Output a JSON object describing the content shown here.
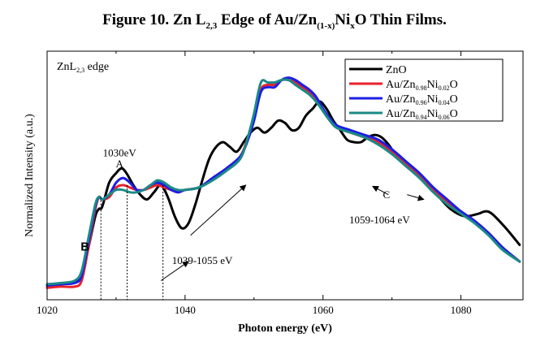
{
  "figure_title": {
    "prefix": "Figure 10. Zn L",
    "sub1": "2,3",
    "mid1": " Edge of Au/Zn",
    "sub2": "(1-x)",
    "mid2": "Ni",
    "sub3": "x",
    "suffix": "O Thin Films."
  },
  "chart_data": {
    "type": "line",
    "title": "Figure 10. Zn L2,3 Edge of Au/Zn(1-x)NixO Thin Films.",
    "xlabel": "Photon energy (eV)",
    "ylabel": "Normalized Intensity (a.u.)",
    "xlim": [
      1020,
      1089
    ],
    "ylim": [
      0,
      1
    ],
    "x_ticks": [
      1020,
      1040,
      1060,
      1080
    ],
    "grid": false,
    "legend_position": "top-right",
    "inset_label": {
      "main": "ZnL",
      "sub": "2,3",
      "tail": " edge"
    },
    "series": [
      {
        "name": "ZnO",
        "legend": {
          "base": "ZnO",
          "parts": []
        },
        "color": "#000000",
        "points": [
          [
            1020,
            0.06
          ],
          [
            1022,
            0.065
          ],
          [
            1024,
            0.075
          ],
          [
            1025,
            0.1
          ],
          [
            1026,
            0.22
          ],
          [
            1027,
            0.35
          ],
          [
            1027.5,
            0.38
          ],
          [
            1028,
            0.39
          ],
          [
            1029,
            0.49
          ],
          [
            1030,
            0.53
          ],
          [
            1030.8,
            0.55
          ],
          [
            1031.5,
            0.53
          ],
          [
            1032.5,
            0.48
          ],
          [
            1033.5,
            0.44
          ],
          [
            1034.5,
            0.42
          ],
          [
            1035.5,
            0.45
          ],
          [
            1036.5,
            0.48
          ],
          [
            1037.5,
            0.43
          ],
          [
            1038.5,
            0.35
          ],
          [
            1039.5,
            0.3
          ],
          [
            1040.5,
            0.32
          ],
          [
            1041.5,
            0.4
          ],
          [
            1042.5,
            0.5
          ],
          [
            1043.5,
            0.59
          ],
          [
            1044.5,
            0.64
          ],
          [
            1045.5,
            0.66
          ],
          [
            1046.5,
            0.64
          ],
          [
            1047.5,
            0.62
          ],
          [
            1048.5,
            0.66
          ],
          [
            1049.5,
            0.7
          ],
          [
            1050.5,
            0.72
          ],
          [
            1051.5,
            0.7
          ],
          [
            1052.5,
            0.72
          ],
          [
            1053.5,
            0.75
          ],
          [
            1054.5,
            0.74
          ],
          [
            1055.5,
            0.71
          ],
          [
            1056.5,
            0.72
          ],
          [
            1057.5,
            0.77
          ],
          [
            1058.5,
            0.8
          ],
          [
            1059.5,
            0.83
          ],
          [
            1060.5,
            0.8
          ],
          [
            1061.5,
            0.75
          ],
          [
            1062.5,
            0.71
          ],
          [
            1063.5,
            0.67
          ],
          [
            1064.5,
            0.66
          ],
          [
            1065.5,
            0.66
          ],
          [
            1066.5,
            0.68
          ],
          [
            1067.5,
            0.69
          ],
          [
            1068.5,
            0.68
          ],
          [
            1069.5,
            0.65
          ],
          [
            1070.5,
            0.61
          ],
          [
            1072.5,
            0.55
          ],
          [
            1074.5,
            0.5
          ],
          [
            1076.5,
            0.44
          ],
          [
            1078.5,
            0.38
          ],
          [
            1080.5,
            0.35
          ],
          [
            1082.5,
            0.36
          ],
          [
            1083.5,
            0.37
          ],
          [
            1084.5,
            0.36
          ],
          [
            1086.5,
            0.3
          ],
          [
            1088.5,
            0.23
          ]
        ]
      },
      {
        "name": "Au/Zn0.98Ni0.02O",
        "legend": {
          "base": "Au/Zn",
          "parts": [
            [
              "0.98",
              "sub"
            ],
            [
              "Ni",
              ""
            ],
            [
              "0.02",
              "sub"
            ],
            [
              "O",
              ""
            ]
          ]
        },
        "color": "#e8222b",
        "points": [
          [
            1020,
            0.05
          ],
          [
            1022,
            0.055
          ],
          [
            1024,
            0.055
          ],
          [
            1025,
            0.08
          ],
          [
            1026,
            0.22
          ],
          [
            1027,
            0.38
          ],
          [
            1027.5,
            0.43
          ],
          [
            1028,
            0.42
          ],
          [
            1029,
            0.43
          ],
          [
            1030,
            0.47
          ],
          [
            1031,
            0.48
          ],
          [
            1032,
            0.47
          ],
          [
            1033,
            0.46
          ],
          [
            1034,
            0.46
          ],
          [
            1035,
            0.47
          ],
          [
            1036,
            0.48
          ],
          [
            1037,
            0.47
          ],
          [
            1038,
            0.46
          ],
          [
            1039,
            0.45
          ],
          [
            1040,
            0.46
          ],
          [
            1042,
            0.47
          ],
          [
            1044,
            0.51
          ],
          [
            1046,
            0.55
          ],
          [
            1048,
            0.6
          ],
          [
            1049,
            0.67
          ],
          [
            1050,
            0.76
          ],
          [
            1051,
            0.88
          ],
          [
            1052,
            0.9
          ],
          [
            1053,
            0.9
          ],
          [
            1054,
            0.92
          ],
          [
            1055,
            0.92
          ],
          [
            1056,
            0.91
          ],
          [
            1057,
            0.89
          ],
          [
            1058,
            0.87
          ],
          [
            1059,
            0.84
          ],
          [
            1060,
            0.79
          ],
          [
            1061,
            0.75
          ],
          [
            1062,
            0.72
          ],
          [
            1064,
            0.7
          ],
          [
            1066,
            0.68
          ],
          [
            1068,
            0.66
          ],
          [
            1070,
            0.62
          ],
          [
            1072,
            0.57
          ],
          [
            1074,
            0.52
          ],
          [
            1076,
            0.46
          ],
          [
            1078,
            0.41
          ],
          [
            1080,
            0.37
          ],
          [
            1082,
            0.33
          ],
          [
            1084,
            0.28
          ],
          [
            1086,
            0.22
          ],
          [
            1088.5,
            0.16
          ]
        ]
      },
      {
        "name": "Au/Zn0.96Ni0.04O",
        "legend": {
          "base": "Au/Zn",
          "parts": [
            [
              "0.96",
              "sub"
            ],
            [
              "Ni",
              ""
            ],
            [
              "0.04",
              "sub"
            ],
            [
              "O",
              ""
            ]
          ]
        },
        "color": "#1d1de6",
        "points": [
          [
            1020,
            0.06
          ],
          [
            1022,
            0.065
          ],
          [
            1024,
            0.07
          ],
          [
            1025,
            0.1
          ],
          [
            1026,
            0.24
          ],
          [
            1027,
            0.39
          ],
          [
            1027.5,
            0.43
          ],
          [
            1028,
            0.42
          ],
          [
            1029,
            0.44
          ],
          [
            1030,
            0.49
          ],
          [
            1031,
            0.51
          ],
          [
            1032,
            0.49
          ],
          [
            1033,
            0.46
          ],
          [
            1034,
            0.46
          ],
          [
            1035,
            0.48
          ],
          [
            1036,
            0.49
          ],
          [
            1037,
            0.48
          ],
          [
            1038,
            0.46
          ],
          [
            1039,
            0.45
          ],
          [
            1040,
            0.46
          ],
          [
            1042,
            0.47
          ],
          [
            1044,
            0.51
          ],
          [
            1046,
            0.55
          ],
          [
            1048,
            0.6
          ],
          [
            1049,
            0.66
          ],
          [
            1050,
            0.75
          ],
          [
            1051,
            0.87
          ],
          [
            1052,
            0.89
          ],
          [
            1053,
            0.89
          ],
          [
            1054,
            0.92
          ],
          [
            1055,
            0.93
          ],
          [
            1056,
            0.92
          ],
          [
            1057,
            0.9
          ],
          [
            1058,
            0.88
          ],
          [
            1059,
            0.85
          ],
          [
            1060,
            0.8
          ],
          [
            1061,
            0.76
          ],
          [
            1062,
            0.73
          ],
          [
            1064,
            0.71
          ],
          [
            1066,
            0.69
          ],
          [
            1068,
            0.67
          ],
          [
            1070,
            0.63
          ],
          [
            1072,
            0.58
          ],
          [
            1074,
            0.53
          ],
          [
            1076,
            0.47
          ],
          [
            1078,
            0.42
          ],
          [
            1080,
            0.37
          ],
          [
            1082,
            0.33
          ],
          [
            1084,
            0.28
          ],
          [
            1086,
            0.22
          ],
          [
            1088.5,
            0.16
          ]
        ]
      },
      {
        "name": "Au/Zn0.94Ni0.06O",
        "legend": {
          "base": "Au/Zn",
          "parts": [
            [
              "0.94",
              "sub"
            ],
            [
              "Ni",
              ""
            ],
            [
              "0.06",
              "sub"
            ],
            [
              "O",
              ""
            ]
          ]
        },
        "color": "#1b8a86",
        "points": [
          [
            1020,
            0.065
          ],
          [
            1022,
            0.07
          ],
          [
            1024,
            0.08
          ],
          [
            1025,
            0.12
          ],
          [
            1026,
            0.26
          ],
          [
            1027,
            0.4
          ],
          [
            1027.5,
            0.43
          ],
          [
            1028,
            0.42
          ],
          [
            1029,
            0.44
          ],
          [
            1030,
            0.46
          ],
          [
            1031,
            0.46
          ],
          [
            1032,
            0.45
          ],
          [
            1033,
            0.45
          ],
          [
            1034,
            0.46
          ],
          [
            1035,
            0.48
          ],
          [
            1036,
            0.5
          ],
          [
            1037,
            0.49
          ],
          [
            1038,
            0.47
          ],
          [
            1039,
            0.46
          ],
          [
            1040,
            0.46
          ],
          [
            1042,
            0.47
          ],
          [
            1044,
            0.5
          ],
          [
            1046,
            0.54
          ],
          [
            1048,
            0.59
          ],
          [
            1049,
            0.67
          ],
          [
            1050,
            0.78
          ],
          [
            1051,
            0.91
          ],
          [
            1052,
            0.91
          ],
          [
            1053,
            0.91
          ],
          [
            1054,
            0.92
          ],
          [
            1055,
            0.92
          ],
          [
            1056,
            0.9
          ],
          [
            1057,
            0.88
          ],
          [
            1058,
            0.86
          ],
          [
            1059,
            0.83
          ],
          [
            1060,
            0.79
          ],
          [
            1061,
            0.75
          ],
          [
            1062,
            0.72
          ],
          [
            1064,
            0.7
          ],
          [
            1066,
            0.68
          ],
          [
            1068,
            0.65
          ],
          [
            1070,
            0.61
          ],
          [
            1072,
            0.56
          ],
          [
            1074,
            0.51
          ],
          [
            1076,
            0.45
          ],
          [
            1078,
            0.4
          ],
          [
            1080,
            0.36
          ],
          [
            1082,
            0.32
          ],
          [
            1084,
            0.27
          ],
          [
            1086,
            0.21
          ],
          [
            1088.5,
            0.16
          ]
        ]
      }
    ],
    "vlines": [
      {
        "x": 1027.8,
        "y_top": 0.43
      },
      {
        "x": 1031.6,
        "y_top": 0.48
      },
      {
        "x": 1036.8,
        "y_top": 0.48
      }
    ],
    "annotations": [
      {
        "id": "a-energy",
        "text": "1030eV",
        "x": 1030.5,
        "y": 0.6,
        "bold": false,
        "size": 13
      },
      {
        "id": "a-letter",
        "text": "A",
        "x": 1030.5,
        "y": 0.555,
        "bold": false,
        "size": 13
      },
      {
        "id": "b-letter",
        "text": "B",
        "x": 1025.5,
        "y": 0.205,
        "bold": true,
        "size": 15
      },
      {
        "id": "b-range",
        "text": "1039-1055 eV",
        "x": 1042.5,
        "y": 0.15,
        "bold": false,
        "size": 13
      },
      {
        "id": "c-letter",
        "text": "C",
        "x": 1069.2,
        "y": 0.425,
        "bold": false,
        "size": 13
      },
      {
        "id": "c-range",
        "text": "1059-1064 eV",
        "x": 1068.2,
        "y": 0.32,
        "bold": false,
        "size": 13
      }
    ],
    "arrows": [
      {
        "id": "b-arrow",
        "from": [
          1036.5,
          0.08
        ],
        "to": [
          1040.5,
          0.16
        ]
      },
      {
        "id": "b-arrow-2",
        "from": [
          1040.8,
          0.27
        ],
        "to": [
          1048.8,
          0.48
        ]
      },
      {
        "id": "c-arrow",
        "from": [
          1069.5,
          0.44
        ],
        "to": [
          1067.2,
          0.475
        ]
      },
      {
        "id": "c-arrow-2",
        "from": [
          1072.2,
          0.44
        ],
        "to": [
          1074.6,
          0.42
        ]
      }
    ]
  }
}
